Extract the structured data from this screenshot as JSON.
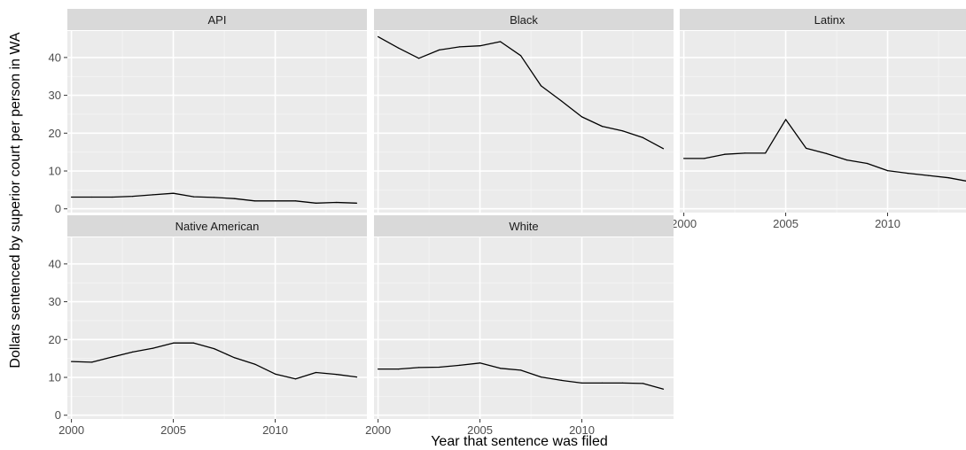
{
  "chart_data": {
    "type": "line",
    "xlabel": "Year that sentence was filed",
    "ylabel": "Dollars sentenced by superior court per person in WA",
    "xlim": [
      1999.8,
      2014.5
    ],
    "ylim": [
      -1,
      47
    ],
    "x_ticks": [
      2000,
      2005,
      2010
    ],
    "y_ticks": [
      0,
      10,
      20,
      30,
      40
    ],
    "grid": true,
    "panel_background": "#ebebeb",
    "strip_background": "#d9d9d9",
    "line_color": "#000000",
    "facets": [
      {
        "label": "API",
        "x": [
          2000,
          2001,
          2002,
          2003,
          2004,
          2005,
          2006,
          2007,
          2008,
          2009,
          2010,
          2011,
          2012,
          2013,
          2014
        ],
        "y": [
          3.1,
          3.1,
          3.1,
          3.3,
          3.7,
          4.1,
          3.2,
          3.0,
          2.7,
          2.1,
          2.1,
          2.1,
          1.5,
          1.7,
          1.5
        ]
      },
      {
        "label": "Black",
        "x": [
          2000,
          2001,
          2002,
          2003,
          2004,
          2005,
          2006,
          2007,
          2008,
          2009,
          2010,
          2011,
          2012,
          2013,
          2014
        ],
        "y": [
          45.5,
          42.5,
          39.8,
          42.0,
          42.8,
          43.1,
          44.2,
          40.5,
          32.5,
          28.5,
          24.3,
          21.8,
          20.6,
          18.8,
          15.9
        ]
      },
      {
        "label": "Latinx",
        "x": [
          2000,
          2001,
          2002,
          2003,
          2004,
          2005,
          2006,
          2007,
          2008,
          2009,
          2010,
          2011,
          2012,
          2013,
          2014
        ],
        "y": [
          13.3,
          13.3,
          14.4,
          14.7,
          14.7,
          23.6,
          16.0,
          14.6,
          12.9,
          12.0,
          10.1,
          9.4,
          8.8,
          8.2,
          7.2
        ]
      },
      {
        "label": "Native American",
        "x": [
          2000,
          2001,
          2002,
          2003,
          2004,
          2005,
          2006,
          2007,
          2008,
          2009,
          2010,
          2011,
          2012,
          2013,
          2014
        ],
        "y": [
          14.2,
          14.0,
          15.4,
          16.7,
          17.7,
          19.1,
          19.1,
          17.6,
          15.2,
          13.5,
          10.9,
          9.6,
          11.3,
          10.8,
          10.1
        ]
      },
      {
        "label": "White",
        "x": [
          2000,
          2001,
          2002,
          2003,
          2004,
          2005,
          2006,
          2007,
          2008,
          2009,
          2010,
          2011,
          2012,
          2013,
          2014
        ],
        "y": [
          12.2,
          12.2,
          12.6,
          12.7,
          13.2,
          13.8,
          12.4,
          11.9,
          10.1,
          9.2,
          8.5,
          8.5,
          8.5,
          8.4,
          6.9
        ]
      }
    ]
  }
}
